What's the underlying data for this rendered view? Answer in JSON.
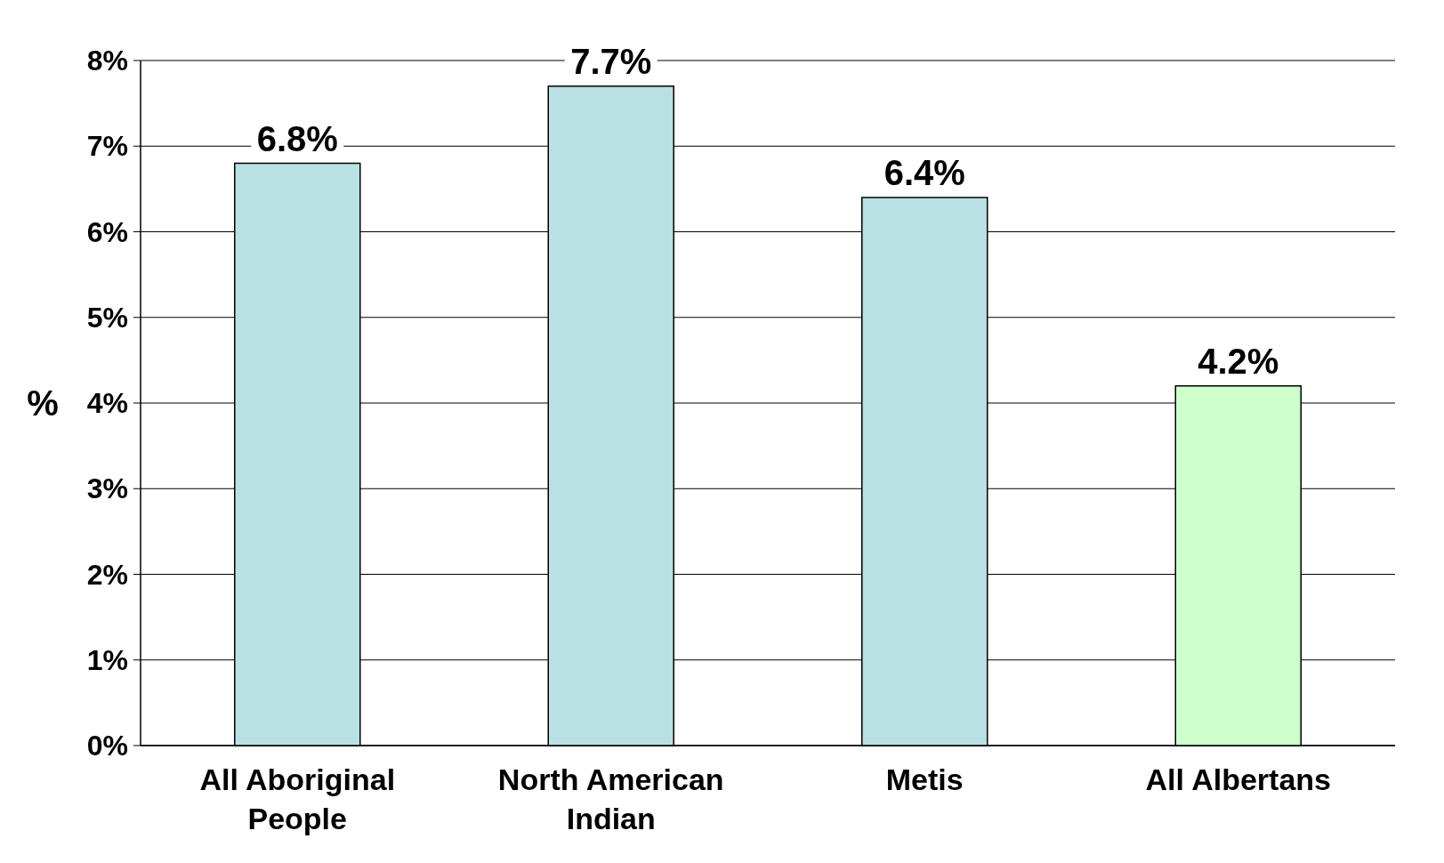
{
  "chart_data": {
    "type": "bar",
    "ylabel": "%",
    "categories": [
      "All Aboriginal People",
      "North American Indian",
      "Metis",
      "All Albertans"
    ],
    "values": [
      6.8,
      7.7,
      6.4,
      4.2
    ],
    "colors": [
      "#b9e0e3",
      "#b9e0e3",
      "#b9e0e3",
      "#ccffcc"
    ],
    "ylim": [
      0,
      8
    ],
    "yticks": [
      {
        "value": 0,
        "label": "0%"
      },
      {
        "value": 1,
        "label": "1%"
      },
      {
        "value": 2,
        "label": "2%"
      },
      {
        "value": 3,
        "label": "3%"
      },
      {
        "value": 4,
        "label": "4%"
      },
      {
        "value": 5,
        "label": "5%"
      },
      {
        "value": 6,
        "label": "6%"
      },
      {
        "value": 7,
        "label": "7%"
      },
      {
        "value": 8,
        "label": "8%"
      }
    ],
    "grid": "y",
    "value_labels": [
      "6.8%",
      "7.7%",
      "6.4%",
      "4.2%"
    ]
  }
}
